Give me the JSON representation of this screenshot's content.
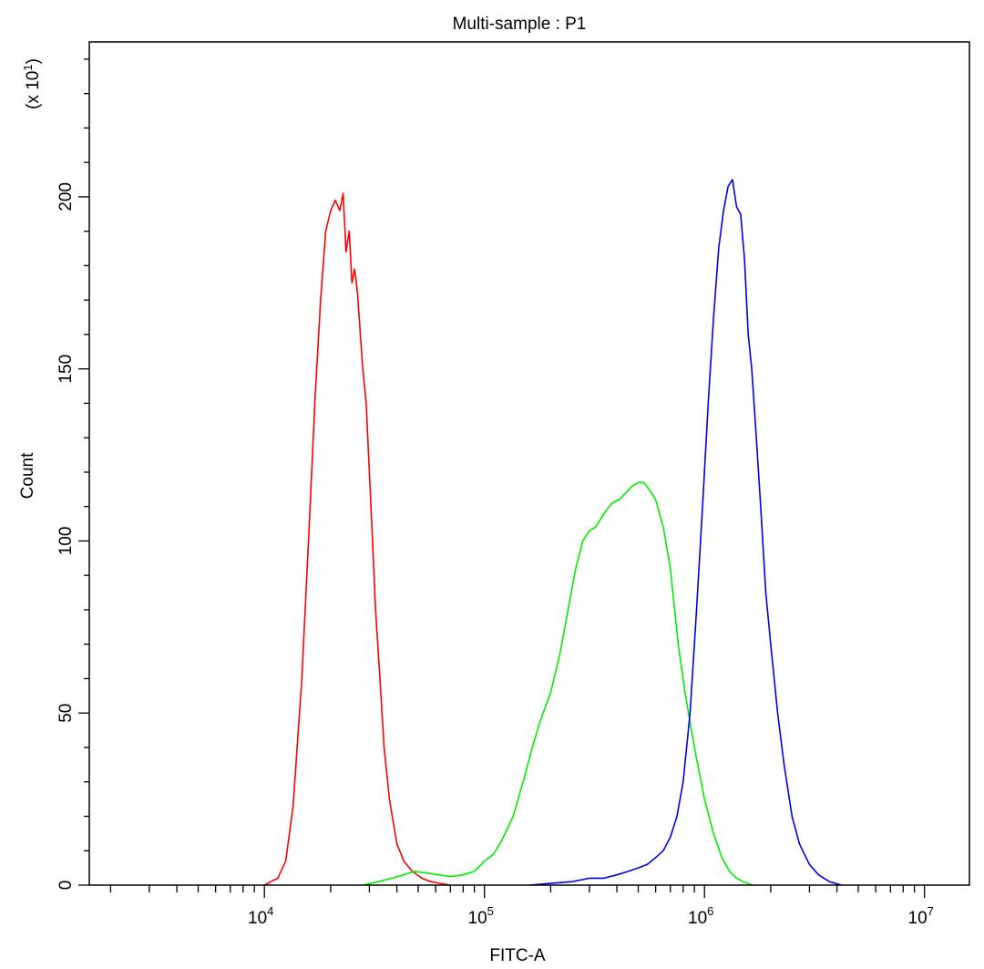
{
  "chart_data": {
    "type": "line",
    "title": "Multi-sample : P1",
    "xlabel": "FITC-A",
    "ylabel": "Count",
    "y_multiplier_label": "(x 10",
    "y_multiplier_exp": "1",
    "y_multiplier_close": ")",
    "x_scale": "log",
    "xlim": [
      1600,
      16000000
    ],
    "ylim": [
      0,
      245
    ],
    "grid": false,
    "legend": "none",
    "x_ticks": [
      {
        "value": 10000,
        "base": "10",
        "exp": "4"
      },
      {
        "value": 100000,
        "base": "10",
        "exp": "5"
      },
      {
        "value": 1000000,
        "base": "10",
        "exp": "6"
      },
      {
        "value": 10000000,
        "base": "10",
        "exp": "7"
      }
    ],
    "y_ticks": [
      {
        "value": 0,
        "label": "0"
      },
      {
        "value": 50,
        "label": "50"
      },
      {
        "value": 100,
        "label": "100"
      },
      {
        "value": 150,
        "label": "150"
      },
      {
        "value": 200,
        "label": "200"
      }
    ],
    "series": [
      {
        "color": "#ff0000",
        "x": [
          10000,
          10700,
          11500,
          12500,
          13500,
          14800,
          16000,
          17000,
          18000,
          19000,
          20000,
          21000,
          22000,
          22800,
          23500,
          24300,
          25000,
          25700,
          26500,
          27300,
          28000,
          29000,
          30000,
          31000,
          32000,
          33500,
          35000,
          37000,
          40000,
          43000,
          47000,
          52000,
          57000,
          63000,
          70000
        ],
        "y": [
          0,
          1,
          2,
          7,
          23,
          60,
          105,
          142,
          170,
          190,
          196,
          199,
          196,
          201,
          184,
          190,
          175,
          179,
          172,
          160,
          150,
          140,
          120,
          100,
          80,
          60,
          40,
          25,
          12,
          7,
          4,
          2,
          1,
          0.5,
          0
        ]
      },
      {
        "color": "#00ee00",
        "x": [
          28000,
          33000,
          38000,
          43000,
          48000,
          55000,
          62000,
          70000,
          80000,
          90000,
          100000,
          110000,
          120000,
          135000,
          150000,
          165000,
          180000,
          200000,
          220000,
          240000,
          260000,
          280000,
          300000,
          320000,
          350000,
          380000,
          410000,
          440000,
          470000,
          500000,
          530000,
          560000,
          600000,
          650000,
          700000,
          760000,
          820000,
          900000,
          1000000,
          1100000,
          1200000,
          1300000,
          1400000,
          1500000,
          1650000
        ],
        "y": [
          0,
          1,
          2,
          3,
          4,
          3.5,
          3,
          2.5,
          3,
          4,
          7,
          9,
          13,
          20,
          30,
          40,
          48,
          56,
          67,
          80,
          92,
          100,
          103,
          104,
          108,
          111,
          112,
          114,
          116,
          117,
          117,
          115,
          112,
          104,
          92,
          70,
          55,
          40,
          25,
          15,
          8,
          4,
          2,
          1,
          0
        ]
      },
      {
        "color": "#0000ee",
        "x": [
          160000,
          200000,
          250000,
          300000,
          350000,
          400000,
          450000,
          500000,
          550000,
          600000,
          650000,
          700000,
          750000,
          800000,
          860000,
          920000,
          980000,
          1040000,
          1100000,
          1160000,
          1220000,
          1280000,
          1340000,
          1400000,
          1460000,
          1520000,
          1580000,
          1640000,
          1720000,
          1800000,
          1900000,
          2000000,
          2150000,
          2300000,
          2500000,
          2700000,
          3000000,
          3300000,
          3700000,
          4200000
        ],
        "y": [
          0,
          0.5,
          1,
          2,
          2,
          3,
          4,
          5,
          6,
          8,
          10,
          14,
          20,
          30,
          50,
          80,
          110,
          140,
          165,
          185,
          196,
          203,
          205,
          197,
          195,
          182,
          160,
          150,
          130,
          110,
          85,
          70,
          50,
          35,
          20,
          12,
          6,
          3,
          1,
          0
        ]
      }
    ]
  }
}
